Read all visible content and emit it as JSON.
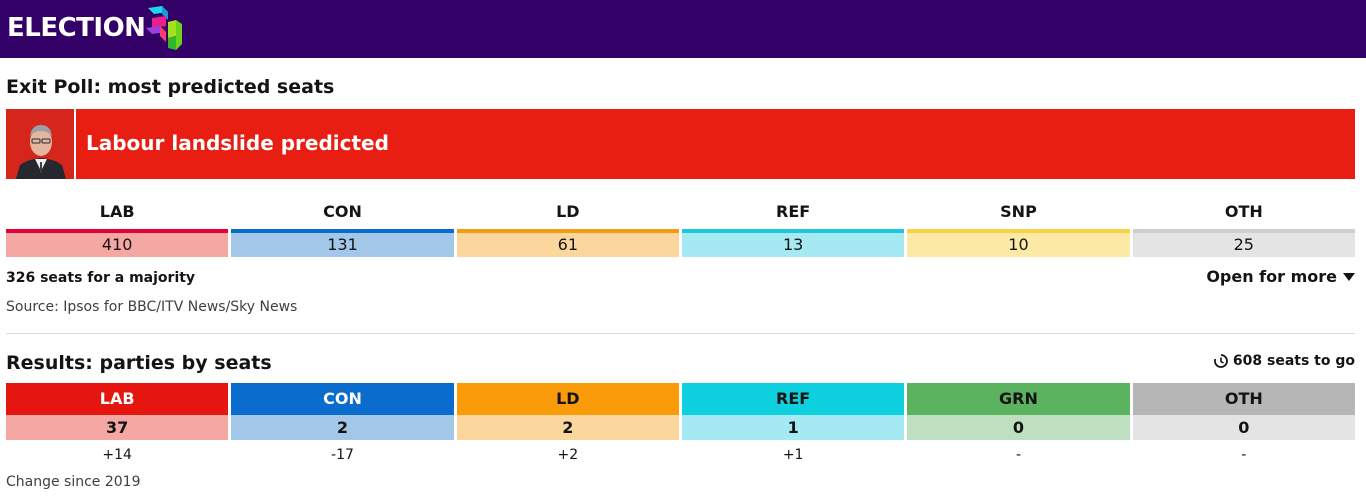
{
  "header": {
    "brand": "ELECTION"
  },
  "exit_poll": {
    "heading": "Exit Poll: most predicted seats",
    "banner_title": "Labour landslide predicted",
    "parties": [
      {
        "code": "LAB",
        "seats": "410",
        "accent": "#e4003b",
        "fill": "#f5a8a3"
      },
      {
        "code": "CON",
        "seats": "131",
        "accent": "#0a6ccc",
        "fill": "#a3c7e8"
      },
      {
        "code": "LD",
        "seats": "61",
        "accent": "#f39c12",
        "fill": "#fcd79d"
      },
      {
        "code": "REF",
        "seats": "13",
        "accent": "#1ec6dc",
        "fill": "#a5e9f2"
      },
      {
        "code": "SNP",
        "seats": "10",
        "accent": "#f8d147",
        "fill": "#fde9a6"
      },
      {
        "code": "OTH",
        "seats": "25",
        "accent": "#cfcfcf",
        "fill": "#e4e4e4"
      }
    ],
    "majority_text": "326 seats for a majority",
    "open_more_label": "Open for more",
    "source_text": "Source: Ipsos for BBC/ITV News/Sky News"
  },
  "results": {
    "heading": "Results: parties by seats",
    "seats_to_go": "608 seats to go",
    "parties": [
      {
        "code": "LAB",
        "seats": "37",
        "change": "+14",
        "color": "#e4160f",
        "fill": "#f5a8a3",
        "label_white": true
      },
      {
        "code": "CON",
        "seats": "2",
        "change": "-17",
        "color": "#0a6ccc",
        "fill": "#a3c7e8",
        "label_white": true
      },
      {
        "code": "LD",
        "seats": "2",
        "change": "+2",
        "color": "#fa9c0a",
        "fill": "#fcd79d",
        "label_white": false
      },
      {
        "code": "REF",
        "seats": "1",
        "change": "+1",
        "color": "#0fd0df",
        "fill": "#a5e9f2",
        "label_white": false
      },
      {
        "code": "GRN",
        "seats": "0",
        "change": "-",
        "color": "#5bb25f",
        "fill": "#bfe0c0",
        "label_white": false
      },
      {
        "code": "OTH",
        "seats": "0",
        "change": "-",
        "color": "#b6b6b6",
        "fill": "#e4e4e4",
        "label_white": false
      }
    ],
    "change_note": "Change since 2019"
  }
}
